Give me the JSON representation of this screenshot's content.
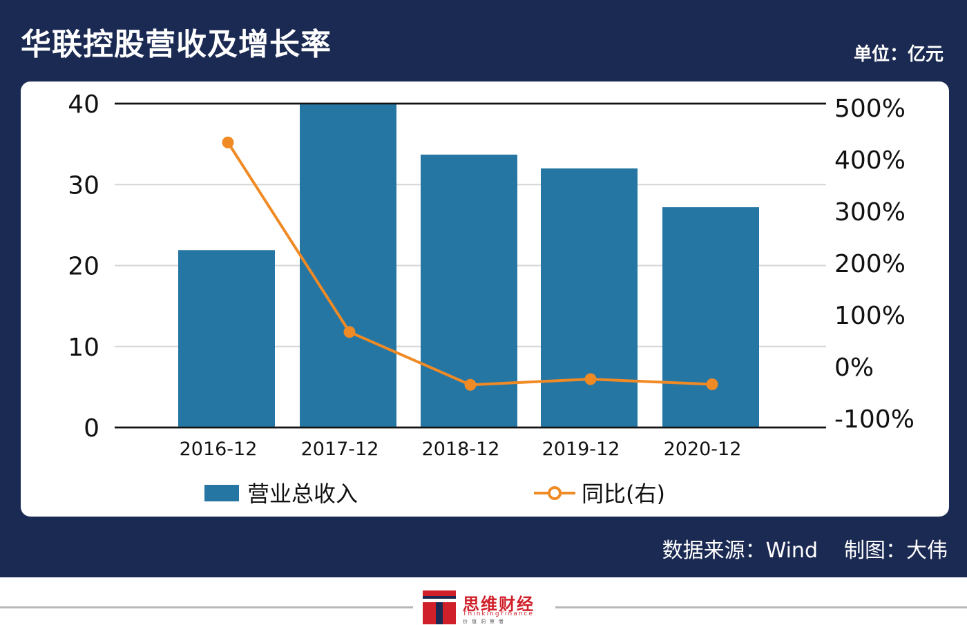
{
  "header": {
    "title": "华联控股营收及增长率",
    "unit": "单位：亿元"
  },
  "footer": {
    "source_label": "数据来源：Wind",
    "author_label": "制图：大伟"
  },
  "logo": {
    "name_cn": "思维财经",
    "name_en": "ThinkingFinance",
    "sub": "价值洞察者"
  },
  "colors": {
    "frame": "#1b2a52",
    "bar": "#2676a4",
    "line": "#f08a24"
  },
  "chart_data": {
    "type": "bar",
    "categories": [
      "2016-12",
      "2017-12",
      "2018-12",
      "2019-12",
      "2020-12"
    ],
    "series": [
      {
        "name": "营业总收入",
        "type": "bar",
        "axis": "left",
        "values": [
          21.9,
          40.0,
          33.7,
          32.0,
          27.2
        ]
      },
      {
        "name": "同比(右)",
        "type": "line",
        "axis": "right",
        "values": [
          433,
          67,
          -35,
          -24,
          -34
        ]
      }
    ],
    "y_left": {
      "ylim": [
        0,
        40
      ],
      "ticks": [
        0,
        10,
        20,
        30,
        40
      ]
    },
    "y_right": {
      "ylim": [
        -100,
        500
      ],
      "ticks": [
        "-100%",
        "0%",
        "100%",
        "200%",
        "300%",
        "400%",
        "500%"
      ]
    },
    "grid": true,
    "legend": {
      "position": "bottom",
      "items": [
        "营业总收入",
        "同比(右)"
      ]
    }
  }
}
